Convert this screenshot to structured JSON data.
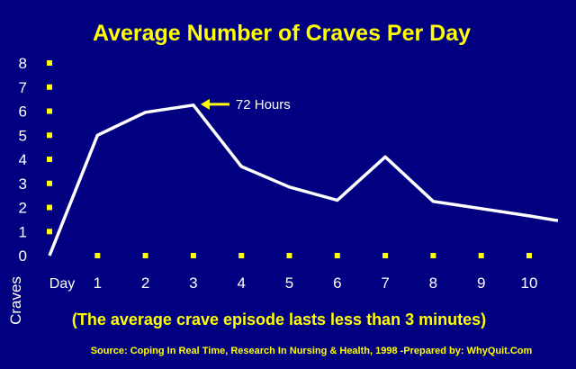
{
  "chart_data": {
    "type": "line",
    "title": "Average Number of Craves Per Day",
    "xlabel": "Day",
    "ylabel": "Craves",
    "x": [
      0,
      1,
      2,
      3,
      4,
      5,
      6,
      7,
      8,
      9,
      10,
      10.6
    ],
    "values": [
      0,
      5.0,
      5.95,
      6.25,
      3.7,
      2.85,
      2.3,
      4.1,
      2.25,
      1.95,
      1.65,
      1.45
    ],
    "x_ticks": [
      "1",
      "2",
      "3",
      "4",
      "5",
      "6",
      "7",
      "8",
      "9",
      "10"
    ],
    "y_ticks": [
      "0",
      "1",
      "2",
      "3",
      "4",
      "5",
      "6",
      "7",
      "8"
    ],
    "ylim": [
      0,
      8
    ],
    "xlim": [
      0,
      10.6
    ],
    "grid": false,
    "legend": "none",
    "annotation": {
      "text": "72 Hours",
      "x": 3,
      "y": 6.25
    },
    "note": "(The average crave episode lasts less than 3 minutes)",
    "source": "Source: Coping In Real Time, Research In Nursing & Health, 1998 -Prepared by: WhyQuit.Com",
    "colors": {
      "background": "#000080",
      "line": "#FFFFFF",
      "markers": "#FFFF00",
      "title": "#FFFF00",
      "text": "#FFFFFF"
    }
  }
}
